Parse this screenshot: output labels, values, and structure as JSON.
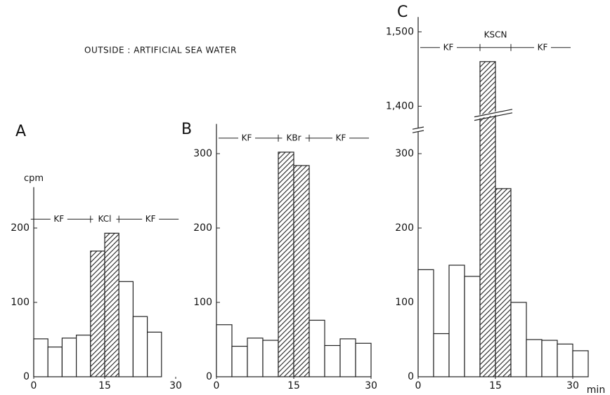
{
  "figure_title": "OUTSIDE : ARTIFICIAL SEA WATER",
  "chart_data": [
    {
      "type": "histogram",
      "panel_label": "A",
      "ylabel": "cpm",
      "bins": [
        0,
        3,
        6,
        9,
        12,
        15,
        18,
        21,
        24,
        27
      ],
      "values": [
        51,
        40,
        52,
        56,
        169,
        193,
        128,
        81,
        60
      ],
      "hatched": [
        false,
        false,
        false,
        false,
        true,
        true,
        false,
        false,
        false
      ],
      "xlim": [
        0,
        30
      ],
      "xticks": [
        0,
        15,
        30
      ],
      "ylim": [
        0,
        255
      ],
      "yticks": [
        0,
        100,
        200
      ],
      "annotations": [
        "KF",
        "KCl",
        "KF"
      ]
    },
    {
      "type": "histogram",
      "panel_label": "B",
      "bins": [
        0,
        3,
        6,
        9,
        12,
        15,
        18,
        21,
        24,
        27,
        30
      ],
      "values": [
        70,
        41,
        52,
        49,
        302,
        284,
        76,
        42,
        51,
        45
      ],
      "hatched": [
        false,
        false,
        false,
        false,
        true,
        true,
        false,
        false,
        false,
        false
      ],
      "xlim": [
        0,
        30
      ],
      "xticks": [
        0,
        15,
        30
      ],
      "ylim": [
        0,
        340
      ],
      "yticks": [
        0,
        100,
        200,
        300
      ],
      "annotations": [
        "KF",
        "KBr",
        "KF"
      ]
    },
    {
      "type": "histogram",
      "panel_label": "C",
      "xlabel": "min",
      "bins": [
        0,
        3,
        6,
        9,
        12,
        15,
        18,
        21,
        24,
        27,
        30,
        33
      ],
      "values": [
        144,
        58,
        150,
        135,
        1460,
        253,
        100,
        50,
        49,
        44,
        35
      ],
      "hatched": [
        false,
        false,
        false,
        false,
        true,
        true,
        false,
        false,
        false,
        false,
        false
      ],
      "xlim": [
        0,
        33
      ],
      "xticks": [
        0,
        15,
        30
      ],
      "ylim": [
        0,
        1520
      ],
      "ybreak": [
        330,
        1370
      ],
      "yticks": [
        0,
        100,
        200,
        300,
        {
          "value": 1400,
          "label": "1,400"
        },
        {
          "value": 1500,
          "label": "1,500"
        }
      ],
      "annotations": [
        "KF",
        "KSCN",
        "KF"
      ]
    }
  ]
}
